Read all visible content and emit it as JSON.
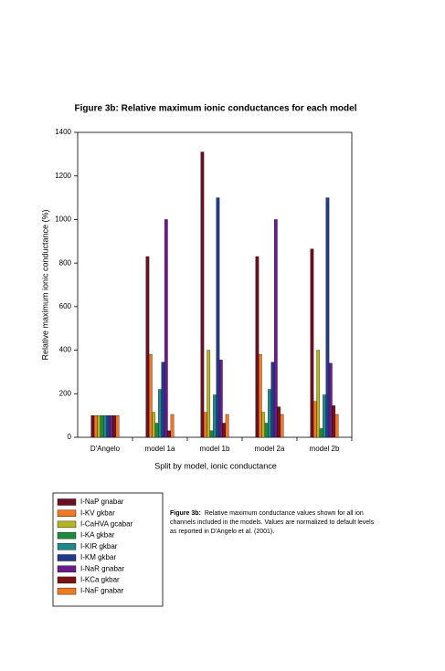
{
  "chart_data": {
    "type": "bar",
    "title": "Figure 3b: Relative maximum ionic conductances for each model",
    "x_label": "Split by model, ionic conductance",
    "y_label": "Relative maximum ionic conductance (%)",
    "categories": [
      "D'Angelo",
      "model 1a",
      "model 1b",
      "model 2a",
      "model 2b"
    ],
    "series": [
      {
        "name": "I-NaP gnabar",
        "color": "#6b1022",
        "values": [
          100,
          830,
          1310,
          830,
          865
        ]
      },
      {
        "name": "I-KV gkbar",
        "color": "#f07a22",
        "values": [
          100,
          380,
          115,
          380,
          165
        ]
      },
      {
        "name": "I-CaHVA gcabar",
        "color": "#b5b522",
        "values": [
          100,
          115,
          400,
          115,
          400
        ]
      },
      {
        "name": "I-KA gkbar",
        "color": "#1f8a3e",
        "values": [
          100,
          65,
          30,
          65,
          40
        ]
      },
      {
        "name": "I-KIR gkbar",
        "color": "#1f8888",
        "values": [
          100,
          220,
          195,
          220,
          195
        ]
      },
      {
        "name": "I-KM gkbar",
        "color": "#22398c",
        "values": [
          100,
          345,
          1100,
          345,
          1100
        ]
      },
      {
        "name": "I-NaR gnabar",
        "color": "#6a1c8c",
        "values": [
          100,
          1000,
          355,
          1000,
          340
        ]
      },
      {
        "name": "I-KCa gkbar",
        "color": "#7a1212",
        "values": [
          100,
          30,
          65,
          140,
          145
        ]
      },
      {
        "name": "I-NaF gnabar",
        "color": "#f07a22",
        "values": [
          100,
          105,
          105,
          105,
          105
        ]
      }
    ],
    "ylim": [
      0,
      1400
    ],
    "yticks": [
      0,
      200,
      400,
      600,
      800,
      1000,
      1200,
      1400
    ],
    "grid": false
  },
  "caption": {
    "label": "Figure 3b:",
    "lines": [
      "Relative maximum conductance values shown for all ion",
      "channels included in the models. Values are normalized to default levels",
      "as reported in D'Angelo et al. (2001)."
    ]
  }
}
